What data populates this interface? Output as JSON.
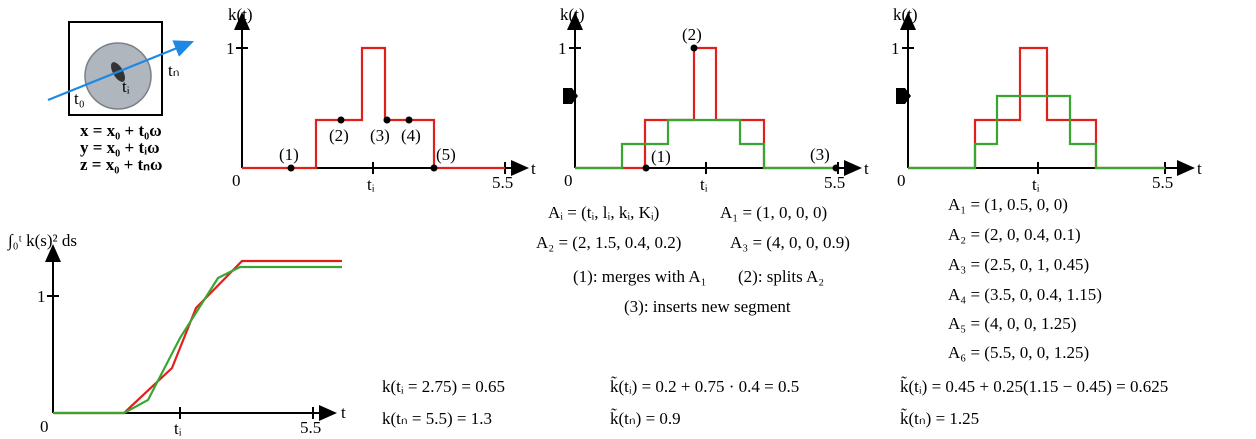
{
  "sensor": {
    "t0": "t₀",
    "ti": "tᵢ",
    "tn": "tₙ",
    "equations": [
      "x = x₀ + t₀ω",
      "y = x₀ + tᵢω",
      "z = x₀ + tₙω"
    ]
  },
  "plots": [
    {
      "y_label": "k(t)",
      "y_tick": "1",
      "origin": "0",
      "x_tick": "tᵢ",
      "x_end": "5.5",
      "x_label": "t",
      "points": [
        "(1)",
        "(2)",
        "(3)",
        "(4)",
        "(5)"
      ]
    },
    {
      "y_label": "k(t)",
      "y_tick": "1",
      "origin": "0",
      "x_tick": "tᵢ",
      "x_end": "5.5",
      "x_label": "t",
      "points": [
        "(1)",
        "(2)",
        "(3)"
      ]
    },
    {
      "y_label": "k(t)",
      "y_tick": "1",
      "origin": "0",
      "x_tick": "tᵢ",
      "x_end": "5.5",
      "x_label": "t"
    }
  ],
  "integral": {
    "y_label": "∫₀ᵗ k(s)² ds",
    "y_tick": "1",
    "origin": "0",
    "x_tick": "tᵢ",
    "x_end": "5.5",
    "x_label": "t"
  },
  "segments": {
    "definition": "Aᵢ = (tᵢ, lᵢ, kᵢ, Kᵢ)",
    "list": [
      "A₁ = (1, 0, 0, 0)",
      "A₂ = (2, 1.5, 0.4, 0.2)",
      "A₃ = (4, 0, 0, 0.9)"
    ],
    "notes": [
      "(1): merges with A₁",
      "(2): splits A₂",
      "(3): inserts new segment"
    ]
  },
  "refined": {
    "list": [
      "A₁ = (1, 0.5, 0, 0)",
      "A₂ = (2, 0, 0.4, 0.1)",
      "A₃ = (2.5, 0, 1, 0.45)",
      "A₄ = (3.5, 0, 0.4, 1.15)",
      "A₅ = (4, 0, 0, 1.25)",
      "A₆ = (5.5, 0, 0, 1.25)"
    ]
  },
  "results": [
    [
      "k(tᵢ = 2.75) = 0.65",
      "k(tₙ = 5.5) = 1.3"
    ],
    [
      "k̃(tᵢ) = 0.2 + 0.75 · 0.4 = 0.5",
      "k̃(tₙ) = 0.9"
    ],
    [
      "k̃(tᵢ) = 0.45 + 0.25(1.15 − 0.45) = 0.625",
      "k̃(tₙ) = 1.25"
    ]
  ]
}
